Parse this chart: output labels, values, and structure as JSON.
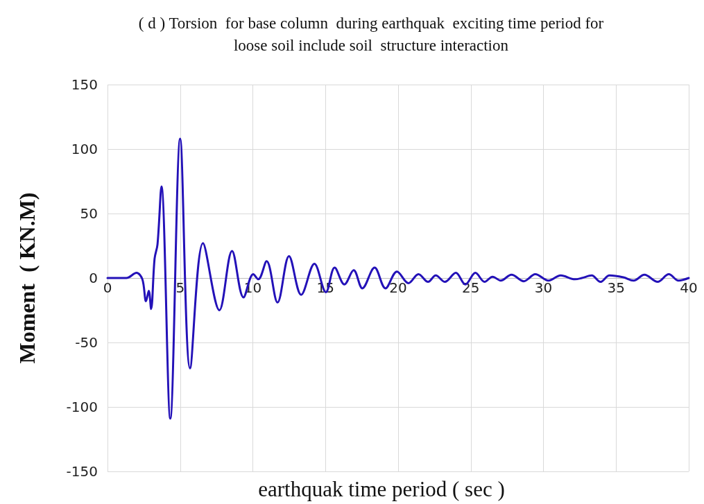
{
  "chart_data": {
    "type": "line",
    "title": "( d ) Torsion  for base column  during earthquak  exciting time period for\nloose soil include soil  structure interaction",
    "xlabel": "earthquak time period ( sec )",
    "ylabel": "Moment  ( KN.M)",
    "xlim": [
      0,
      40
    ],
    "xticks": [
      0,
      5,
      10,
      15,
      20,
      25,
      30,
      35,
      40
    ],
    "ylim": [
      -150,
      150
    ],
    "yticks": [
      -150,
      -100,
      -50,
      0,
      50,
      100,
      150
    ],
    "grid": true,
    "marker": "none",
    "line_style": "solid",
    "series": [
      {
        "color": "#2311b8",
        "x": [
          0,
          1.3,
          2.0,
          2.4,
          2.65,
          2.84,
          3.0,
          3.24,
          3.44,
          3.71,
          4.32,
          5.0,
          5.68,
          6.57,
          7.7,
          8.57,
          9.36,
          10.03,
          10.38,
          10.95,
          11.7,
          12.49,
          13.33,
          14.24,
          15.03,
          15.63,
          16.3,
          16.94,
          17.54,
          18.38,
          19.13,
          19.92,
          20.71,
          21.4,
          22.06,
          22.59,
          23.22,
          23.97,
          24.63,
          25.32,
          25.95,
          26.5,
          27.06,
          27.8,
          28.65,
          29.44,
          30.35,
          31.19,
          32.17,
          32.65,
          33.32,
          33.92,
          34.55,
          35.5,
          36.2,
          36.95,
          37.86,
          38.63,
          39.3,
          40
        ],
        "values": [
          0,
          0,
          4,
          -1,
          -18,
          -10,
          -24,
          15,
          26,
          71,
          -109,
          108,
          -70,
          27,
          -25,
          21,
          -15,
          3,
          -1,
          13,
          -19,
          17,
          -13,
          11,
          -11,
          8,
          -5,
          6,
          -8,
          8,
          -8,
          5,
          -4,
          3,
          -3,
          2,
          -3,
          4,
          -5,
          4,
          -3,
          1,
          -2,
          2.5,
          -2.5,
          3,
          -2,
          2,
          -1,
          0,
          2,
          -3,
          2,
          0.5,
          -2,
          2.5,
          -3,
          3,
          -2,
          0
        ]
      }
    ]
  }
}
